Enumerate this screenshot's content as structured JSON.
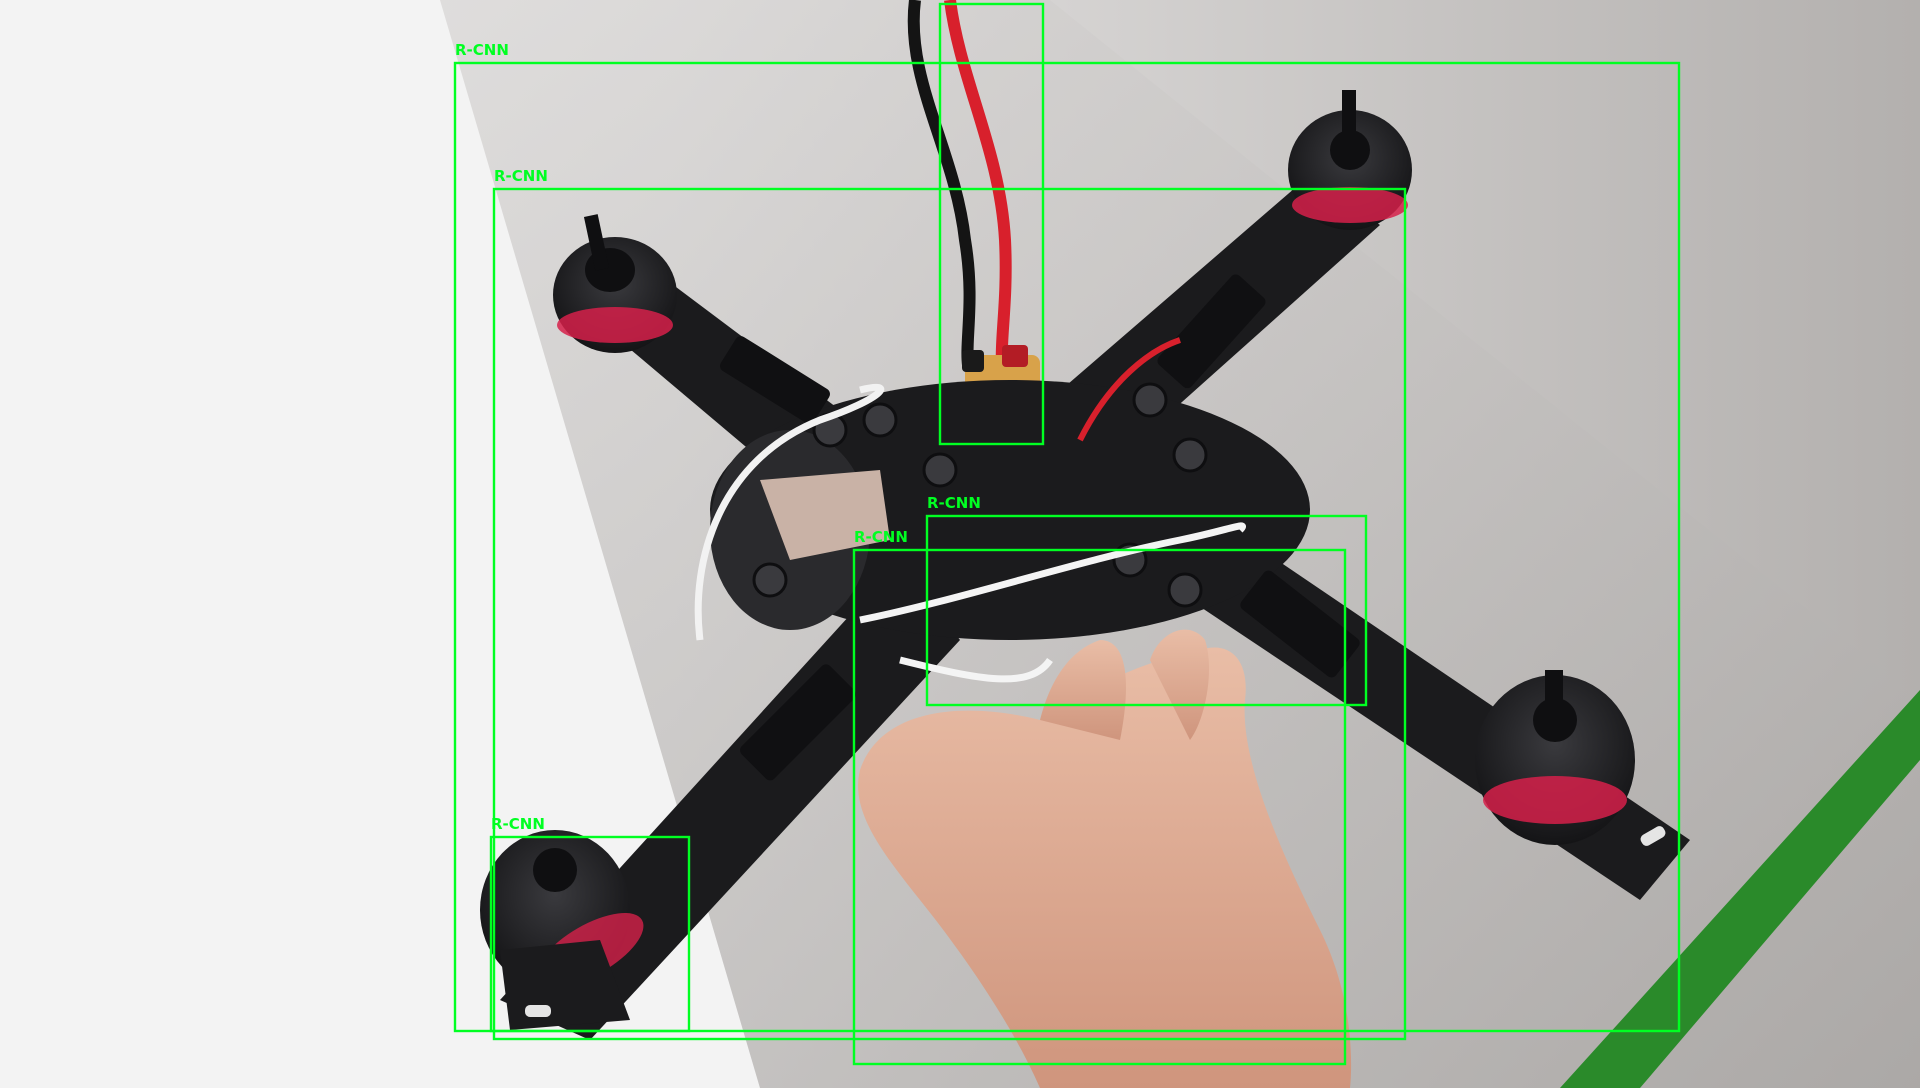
{
  "image": {
    "description_free": true,
    "colors": {
      "box": "#00ff22",
      "wall_light": "#f2f2f2",
      "wall_shade": "#b9b6b4",
      "frame": "#1b1b1d",
      "motor_ring": "#d6204a",
      "xt60": "#d8a24a",
      "skin": "#e5b49c",
      "stripe": "#2a8a2a"
    }
  },
  "detections": [
    {
      "label": "R-CNN"
    },
    {
      "label": "R-CNN"
    },
    {
      "label": "R-CNN"
    },
    {
      "label": "R-CNN"
    },
    {
      "label": "R-CNN"
    },
    {
      "label": ""
    }
  ]
}
